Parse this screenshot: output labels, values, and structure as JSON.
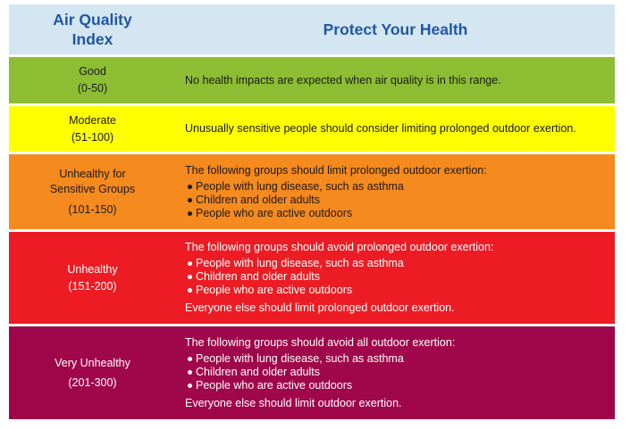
{
  "header": {
    "left_line1": "Air Quality",
    "left_line2": "Index",
    "right": "Protect Your Health"
  },
  "levels": [
    {
      "name": "Good",
      "range": "(0-50)",
      "text": "No health impacts are expected when air quality is in this range.",
      "color": "#8cbd32"
    },
    {
      "name": "Moderate",
      "range": "(51-100)",
      "text": "Unusually sensitive people should consider limiting prolonged outdoor exertion.",
      "color": "#ffff00"
    },
    {
      "name_line1": "Unhealthy for",
      "name_line2": "Sensitive Groups",
      "range": "(101-150)",
      "intro": "The following groups should limit prolonged outdoor exertion:",
      "bullets": [
        "People with lung disease, such as asthma",
        "Children and older adults",
        "People who are active outdoors"
      ],
      "color": "#f58a1f"
    },
    {
      "name": "Unhealthy",
      "range": "(151-200)",
      "intro": "The following groups should avoid prolonged outdoor exertion:",
      "bullets": [
        "People with lung disease, such as asthma",
        "Children and older adults",
        "People who are active outdoors"
      ],
      "note": "Everyone else should limit prolonged outdoor exertion.",
      "color": "#ed1c24"
    },
    {
      "name": "Very Unhealthy",
      "range": "(201-300)",
      "intro": "The following groups should avoid all outdoor exertion:",
      "bullets": [
        "People with lung disease, such as asthma",
        "Children and older adults",
        "People who are active outdoors"
      ],
      "note": "Everyone else should limit outdoor exertion.",
      "color": "#a0064a"
    }
  ]
}
